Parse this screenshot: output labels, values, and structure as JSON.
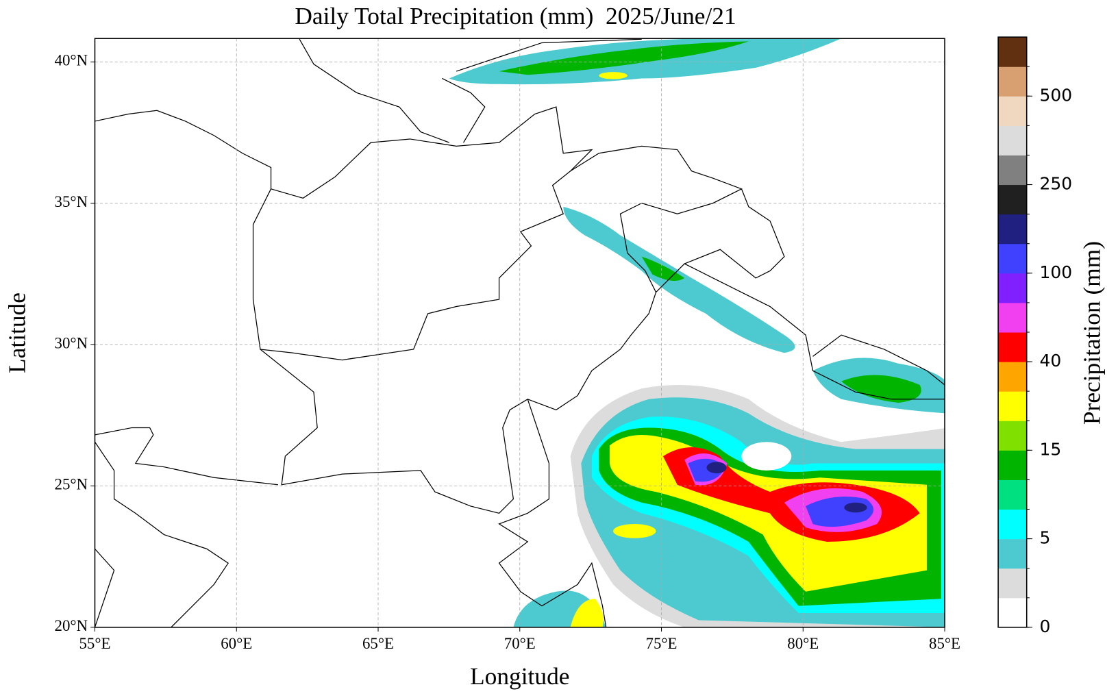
{
  "title": "Daily Total Precipitation (mm)  2025/June/21",
  "map": {
    "xlabel": "Longitude",
    "ylabel": "Latitude",
    "xlim": [
      55,
      85
    ],
    "ylim": [
      20,
      40.83
    ],
    "grid": true,
    "xticks": [
      {
        "value": 55,
        "label": "55°E"
      },
      {
        "value": 60,
        "label": "60°E"
      },
      {
        "value": 65,
        "label": "65°E"
      },
      {
        "value": 70,
        "label": "70°E"
      },
      {
        "value": 75,
        "label": "75°E"
      },
      {
        "value": 80,
        "label": "80°E"
      },
      {
        "value": 85,
        "label": "85°E"
      }
    ],
    "yticks": [
      {
        "value": 20,
        "label": "20°N"
      },
      {
        "value": 25,
        "label": "25°N"
      },
      {
        "value": 30,
        "label": "30°N"
      },
      {
        "value": 35,
        "label": "35°N"
      },
      {
        "value": 40,
        "label": "40°N"
      }
    ]
  },
  "colorbar": {
    "label": "Precipitation (mm)",
    "colors": [
      "#ffffff",
      "#dcdcdc",
      "#4ccad0",
      "#00ffff",
      "#00e080",
      "#00b400",
      "#80e000",
      "#ffff00",
      "#ffa500",
      "#ff0000",
      "#f040f0",
      "#8020ff",
      "#4040ff",
      "#202080",
      "#202020",
      "#808080",
      "#dcdcdc",
      "#f0d8c0",
      "#d8a070",
      "#603010"
    ],
    "ticks": [
      0,
      5,
      15,
      40,
      100,
      250,
      500
    ]
  }
}
